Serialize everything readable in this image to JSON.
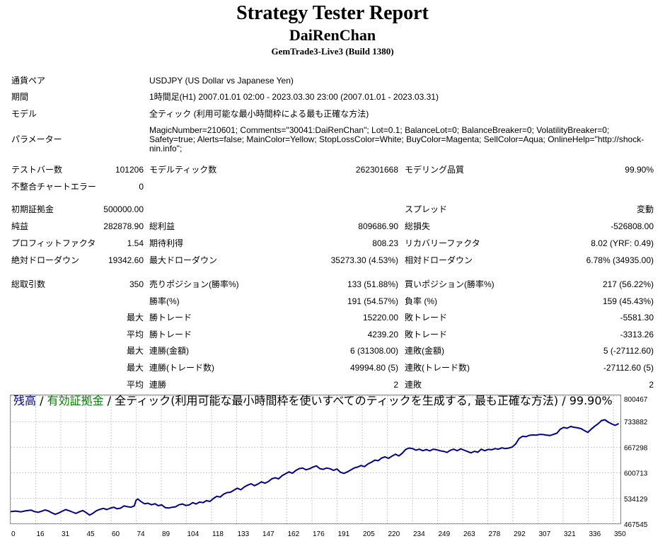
{
  "header": {
    "title": "Strategy Tester Report",
    "ea_name": "DaiRenChan",
    "server": "GemTrade3-Live3 (Build 1380)"
  },
  "info": {
    "symbol_label": "通貨ペア",
    "symbol_value": "USDJPY (US Dollar vs Japanese Yen)",
    "period_label": "期間",
    "period_value": "1時間足(H1) 2007.01.01 02:00 - 2023.03.30 23:00 (2007.01.01 - 2023.03.31)",
    "model_label": "モデル",
    "model_value": "全ティック (利用可能な最小時間枠による最も正確な方法)",
    "params_label": "パラメーター",
    "params_value": "MagicNumber=210601; Comments=\"30041:DaiRenChan\"; Lot=0.1; BalanceLot=0; BalanceBreaker=0; VolatilityBreaker=0; Safety=true; Alerts=false; MainColor=Yellow; StopLossColor=White; BuyColor=Magenta; SellColor=Aqua; OnlineHelp=\"http://shock-nin.info\";"
  },
  "bars": {
    "bars_label": "テストバー数",
    "bars_value": "101206",
    "ticks_label": "モデルティック数",
    "ticks_value": "262301668",
    "quality_label": "モデリング品質",
    "quality_value": "99.90%",
    "errors_label": "不整合チャートエラー",
    "errors_value": "0"
  },
  "stats": {
    "deposit_label": "初期証拠金",
    "deposit_value": "500000.00",
    "spread_label": "スプレッド",
    "spread_value": "変動",
    "net_label": "純益",
    "net_value": "282878.90",
    "gross_profit_label": "総利益",
    "gross_profit_value": "809686.90",
    "gross_loss_label": "総損失",
    "gross_loss_value": "-526808.00",
    "pf_label": "プロフィットファクタ",
    "pf_value": "1.54",
    "payoff_label": "期待利得",
    "payoff_value": "808.23",
    "recovery_label": "リカバリーファクタ",
    "recovery_value": "8.02 (YRF: 0.49)",
    "abs_dd_label": "絶対ドローダウン",
    "abs_dd_value": "19342.60",
    "max_dd_label": "最大ドローダウン",
    "max_dd_value": "35273.30 (4.53%)",
    "rel_dd_label": "相対ドローダウン",
    "rel_dd_value": "6.78% (34935.00)"
  },
  "trades": {
    "total_label": "総取引数",
    "total_value": "350",
    "short_label": "売りポジション(勝率%)",
    "short_value": "133 (51.88%)",
    "long_label": "買いポジション(勝率%)",
    "long_value": "217 (56.22%)",
    "win_label": "勝率(%)",
    "win_value": "191 (54.57%)",
    "loss_label": "負率 (%)",
    "loss_value": "159 (45.43%)",
    "max_label": "最大",
    "avg_label": "平均",
    "largest_win_label": "勝トレード",
    "largest_win_value": "15220.00",
    "largest_loss_label": "敗トレード",
    "largest_loss_value": "-5581.30",
    "avg_win_label": "勝トレード",
    "avg_win_value": "4239.20",
    "avg_loss_label": "敗トレード",
    "avg_loss_value": "-3313.26",
    "cons_win_money_label": "連勝(金額)",
    "cons_win_money_value": "6 (31308.00)",
    "cons_loss_money_label": "連敗(金額)",
    "cons_loss_money_value": "5 (-27112.60)",
    "cons_win_count_label": "連勝(トレード数)",
    "cons_win_count_value": "49994.80 (5)",
    "cons_loss_count_label": "連敗(トレード数)",
    "cons_loss_count_value": "-27112.60 (5)",
    "avg_cons_win_label": "連勝",
    "avg_cons_win_value": "2",
    "avg_cons_loss_label": "連敗",
    "avg_cons_loss_value": "2"
  },
  "chart_data": {
    "type": "line",
    "legend": {
      "balance": "残高",
      "sep1": " / ",
      "lots": "有効証拠金",
      "sep2": " / ",
      "model": "全ティック(利用可能な最小時間枠を使いすべてのティックを生成する, 最も正確な方法)",
      "sep3": " / ",
      "quality": "99.90%"
    },
    "colors": {
      "line": "#000080",
      "grid": "#c8c8c8",
      "balance_text": "#000080",
      "lots_text": "#008000"
    },
    "x_ticks": [
      0,
      16,
      31,
      45,
      60,
      74,
      89,
      104,
      118,
      133,
      147,
      162,
      176,
      191,
      205,
      220,
      234,
      249,
      263,
      278,
      292,
      307,
      321,
      336,
      350
    ],
    "y_ticks": [
      "800467",
      "733882",
      "667298",
      "600713",
      "534129",
      "467545"
    ],
    "ylim": [
      467545,
      800467
    ],
    "xlim": [
      0,
      355
    ],
    "series": [
      {
        "values": [
          [
            0,
            498000
          ],
          [
            3,
            499500
          ],
          [
            6,
            497500
          ],
          [
            9,
            500500
          ],
          [
            12,
            502000
          ],
          [
            14,
            498000
          ],
          [
            16,
            496500
          ],
          [
            18,
            499000
          ],
          [
            20,
            502500
          ],
          [
            22,
            500000
          ],
          [
            24,
            495000
          ],
          [
            26,
            491000
          ],
          [
            28,
            494500
          ],
          [
            30,
            499000
          ],
          [
            32,
            503500
          ],
          [
            34,
            500500
          ],
          [
            36,
            497000
          ],
          [
            38,
            493500
          ],
          [
            40,
            497500
          ],
          [
            42,
            501000
          ],
          [
            44,
            495500
          ],
          [
            46,
            489000
          ],
          [
            48,
            494000
          ],
          [
            50,
            500500
          ],
          [
            52,
            504000
          ],
          [
            54,
            506500
          ],
          [
            56,
            503500
          ],
          [
            58,
            507000
          ],
          [
            60,
            509500
          ],
          [
            62,
            505500
          ],
          [
            64,
            507000
          ],
          [
            66,
            513000
          ],
          [
            68,
            511000
          ],
          [
            70,
            509500
          ],
          [
            72,
            513000
          ],
          [
            73,
            527500
          ],
          [
            74,
            531000
          ],
          [
            76,
            524000
          ],
          [
            78,
            518500
          ],
          [
            80,
            520000
          ],
          [
            82,
            516000
          ],
          [
            84,
            518500
          ],
          [
            86,
            513500
          ],
          [
            88,
            515500
          ],
          [
            90,
            508500
          ],
          [
            92,
            507500
          ],
          [
            94,
            509500
          ],
          [
            96,
            510500
          ],
          [
            98,
            516000
          ],
          [
            100,
            518000
          ],
          [
            102,
            514000
          ],
          [
            104,
            515500
          ],
          [
            106,
            521500
          ],
          [
            108,
            518000
          ],
          [
            110,
            523000
          ],
          [
            112,
            521500
          ],
          [
            114,
            526500
          ],
          [
            116,
            524500
          ],
          [
            118,
            532000
          ],
          [
            120,
            538000
          ],
          [
            122,
            536000
          ],
          [
            124,
            543500
          ],
          [
            126,
            547500
          ],
          [
            128,
            548500
          ],
          [
            130,
            554000
          ],
          [
            132,
            559000
          ],
          [
            134,
            555000
          ],
          [
            136,
            562000
          ],
          [
            138,
            567000
          ],
          [
            140,
            570500
          ],
          [
            142,
            565500
          ],
          [
            144,
            570000
          ],
          [
            146,
            575500
          ],
          [
            148,
            572000
          ],
          [
            150,
            576000
          ],
          [
            152,
            583500
          ],
          [
            154,
            586000
          ],
          [
            156,
            583500
          ],
          [
            158,
            591500
          ],
          [
            160,
            596500
          ],
          [
            162,
            601500
          ],
          [
            164,
            598000
          ],
          [
            166,
            605000
          ],
          [
            168,
            610000
          ],
          [
            170,
            611500
          ],
          [
            172,
            607000
          ],
          [
            174,
            609500
          ],
          [
            176,
            614000
          ],
          [
            178,
            617000
          ],
          [
            180,
            610000
          ],
          [
            182,
            608000
          ],
          [
            184,
            611500
          ],
          [
            186,
            609500
          ],
          [
            188,
            605500
          ],
          [
            190,
            609000
          ],
          [
            192,
            600500
          ],
          [
            194,
            597500
          ],
          [
            196,
            601500
          ],
          [
            198,
            606500
          ],
          [
            200,
            611500
          ],
          [
            202,
            614000
          ],
          [
            204,
            618000
          ],
          [
            206,
            615000
          ],
          [
            208,
            622000
          ],
          [
            210,
            626500
          ],
          [
            212,
            632000
          ],
          [
            214,
            630500
          ],
          [
            216,
            637500
          ],
          [
            218,
            640500
          ],
          [
            220,
            636500
          ],
          [
            222,
            642500
          ],
          [
            224,
            647500
          ],
          [
            226,
            643000
          ],
          [
            228,
            650000
          ],
          [
            230,
            660000
          ],
          [
            232,
            663500
          ],
          [
            234,
            662000
          ],
          [
            236,
            658000
          ],
          [
            238,
            660500
          ],
          [
            240,
            656500
          ],
          [
            242,
            659500
          ],
          [
            244,
            656000
          ],
          [
            246,
            660500
          ],
          [
            248,
            659000
          ],
          [
            250,
            656500
          ],
          [
            252,
            655000
          ],
          [
            254,
            652000
          ],
          [
            256,
            657500
          ],
          [
            258,
            660500
          ],
          [
            260,
            656500
          ],
          [
            262,
            661500
          ],
          [
            264,
            658000
          ],
          [
            266,
            654500
          ],
          [
            268,
            651000
          ],
          [
            270,
            655000
          ],
          [
            272,
            652500
          ],
          [
            274,
            660500
          ],
          [
            276,
            656500
          ],
          [
            278,
            660000
          ],
          [
            280,
            659000
          ],
          [
            282,
            662000
          ],
          [
            284,
            660500
          ],
          [
            286,
            664000
          ],
          [
            288,
            662000
          ],
          [
            290,
            663500
          ],
          [
            292,
            666000
          ],
          [
            294,
            674000
          ],
          [
            296,
            688000
          ],
          [
            298,
            694000
          ],
          [
            300,
            693000
          ],
          [
            302,
            696500
          ],
          [
            304,
            697500
          ],
          [
            306,
            697000
          ],
          [
            308,
            699000
          ],
          [
            310,
            698500
          ],
          [
            312,
            697000
          ],
          [
            314,
            696000
          ],
          [
            316,
            699000
          ],
          [
            318,
            702000
          ],
          [
            320,
            712500
          ],
          [
            322,
            717000
          ],
          [
            324,
            715000
          ],
          [
            326,
            719500
          ],
          [
            328,
            717500
          ],
          [
            330,
            716000
          ],
          [
            332,
            714000
          ],
          [
            334,
            709000
          ],
          [
            336,
            704000
          ],
          [
            338,
            712500
          ],
          [
            340,
            720000
          ],
          [
            342,
            726500
          ],
          [
            344,
            735000
          ],
          [
            346,
            737000
          ],
          [
            348,
            730500
          ],
          [
            350,
            726000
          ],
          [
            352,
            722500
          ],
          [
            354,
            727000
          ]
        ]
      }
    ]
  }
}
